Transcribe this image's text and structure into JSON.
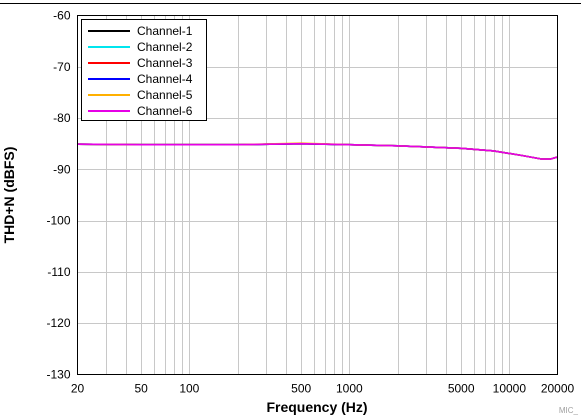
{
  "chart_data": {
    "type": "line",
    "title": "",
    "xlabel": "Frequency (Hz)",
    "ylabel": "THD+N (dBFS)",
    "x_scale": "log",
    "xlim": [
      20,
      20000
    ],
    "ylim": [
      -130,
      -60
    ],
    "x_ticks": [
      20,
      50,
      100,
      500,
      1000,
      5000,
      10000,
      20000
    ],
    "x_tick_labels": [
      "20",
      "50",
      "100",
      "500",
      "1000",
      "5000",
      "10000",
      "20000"
    ],
    "y_ticks": [
      -130,
      -120,
      -110,
      -100,
      -90,
      -80,
      -70,
      -60
    ],
    "y_tick_labels": [
      "-130",
      "-120",
      "-110",
      "-100",
      "-90",
      "-80",
      "-70",
      "-60"
    ],
    "grid": true,
    "legend_position": "top-left",
    "footnote": "MIC_",
    "series": [
      {
        "name": "Channel-1",
        "color": "#000000",
        "x": [
          20,
          50,
          100,
          200,
          500,
          1000,
          2000,
          5000,
          8000,
          12000,
          16000,
          18000,
          20000
        ],
        "y": [
          -85.1,
          -85.2,
          -85.2,
          -85.2,
          -85.0,
          -85.2,
          -85.4,
          -85.9,
          -86.4,
          -87.3,
          -88.0,
          -88.0,
          -87.6
        ]
      },
      {
        "name": "Channel-2",
        "color": "#00e5ee",
        "x": [
          20,
          50,
          100,
          200,
          500,
          1000,
          2000,
          5000,
          8000,
          12000,
          16000,
          18000,
          20000
        ],
        "y": [
          -85.1,
          -85.2,
          -85.2,
          -85.2,
          -85.0,
          -85.2,
          -85.4,
          -85.9,
          -86.4,
          -87.3,
          -88.0,
          -88.0,
          -87.6
        ]
      },
      {
        "name": "Channel-3",
        "color": "#ff0000",
        "x": [
          20,
          50,
          100,
          200,
          500,
          1000,
          2000,
          5000,
          8000,
          12000,
          16000,
          18000,
          20000
        ],
        "y": [
          -85.1,
          -85.2,
          -85.2,
          -85.2,
          -85.0,
          -85.2,
          -85.4,
          -85.9,
          -86.4,
          -87.3,
          -88.0,
          -88.0,
          -87.6
        ]
      },
      {
        "name": "Channel-4",
        "color": "#0000ff",
        "x": [
          20,
          50,
          100,
          200,
          500,
          1000,
          2000,
          5000,
          8000,
          12000,
          16000,
          18000,
          20000
        ],
        "y": [
          -85.1,
          -85.2,
          -85.2,
          -85.2,
          -85.0,
          -85.2,
          -85.4,
          -85.9,
          -86.4,
          -87.3,
          -88.0,
          -88.0,
          -87.6
        ]
      },
      {
        "name": "Channel-5",
        "color": "#ffb000",
        "x": [
          20,
          50,
          100,
          200,
          500,
          1000,
          2000,
          5000,
          8000,
          12000,
          16000,
          18000,
          20000
        ],
        "y": [
          -85.1,
          -85.2,
          -85.2,
          -85.2,
          -84.9,
          -85.2,
          -85.4,
          -85.9,
          -86.4,
          -87.3,
          -88.0,
          -88.0,
          -87.6
        ]
      },
      {
        "name": "Channel-6",
        "color": "#e600e6",
        "x": [
          20,
          50,
          100,
          200,
          500,
          1000,
          2000,
          5000,
          8000,
          12000,
          16000,
          18000,
          20000
        ],
        "y": [
          -85.1,
          -85.2,
          -85.2,
          -85.2,
          -85.0,
          -85.2,
          -85.4,
          -85.9,
          -86.4,
          -87.3,
          -88.0,
          -88.0,
          -87.6
        ]
      }
    ]
  }
}
